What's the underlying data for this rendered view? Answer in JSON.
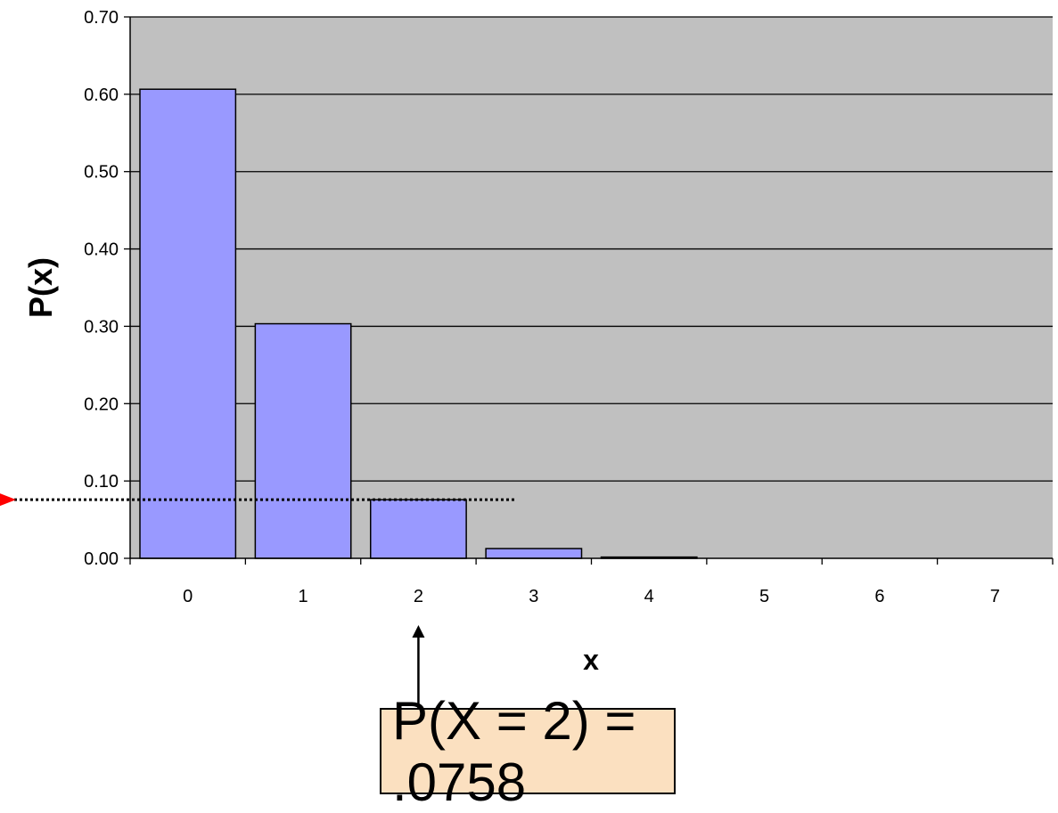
{
  "chart_data": {
    "type": "bar",
    "categories": [
      "0",
      "1",
      "2",
      "3",
      "4",
      "5",
      "6",
      "7"
    ],
    "values": [
      0.6065,
      0.3033,
      0.0758,
      0.0126,
      0.0016,
      0.0002,
      0.0,
      0.0
    ],
    "xlabel": "x",
    "ylabel": "P(x)",
    "ylim": [
      0,
      0.7
    ],
    "yticks": [
      "0.00",
      "0.10",
      "0.20",
      "0.30",
      "0.40",
      "0.50",
      "0.60",
      "0.70"
    ],
    "grid": true,
    "highlight": {
      "category": "2",
      "value": 0.0758
    }
  },
  "annotation": {
    "text": "P(X = 2) = .0758"
  },
  "colors": {
    "plot_background": "#C0C0C0",
    "bar_fill": "#9999FF",
    "bar_stroke": "#000000",
    "marker_arrow": "#FF0000",
    "callout_fill": "#FBE0C0"
  }
}
